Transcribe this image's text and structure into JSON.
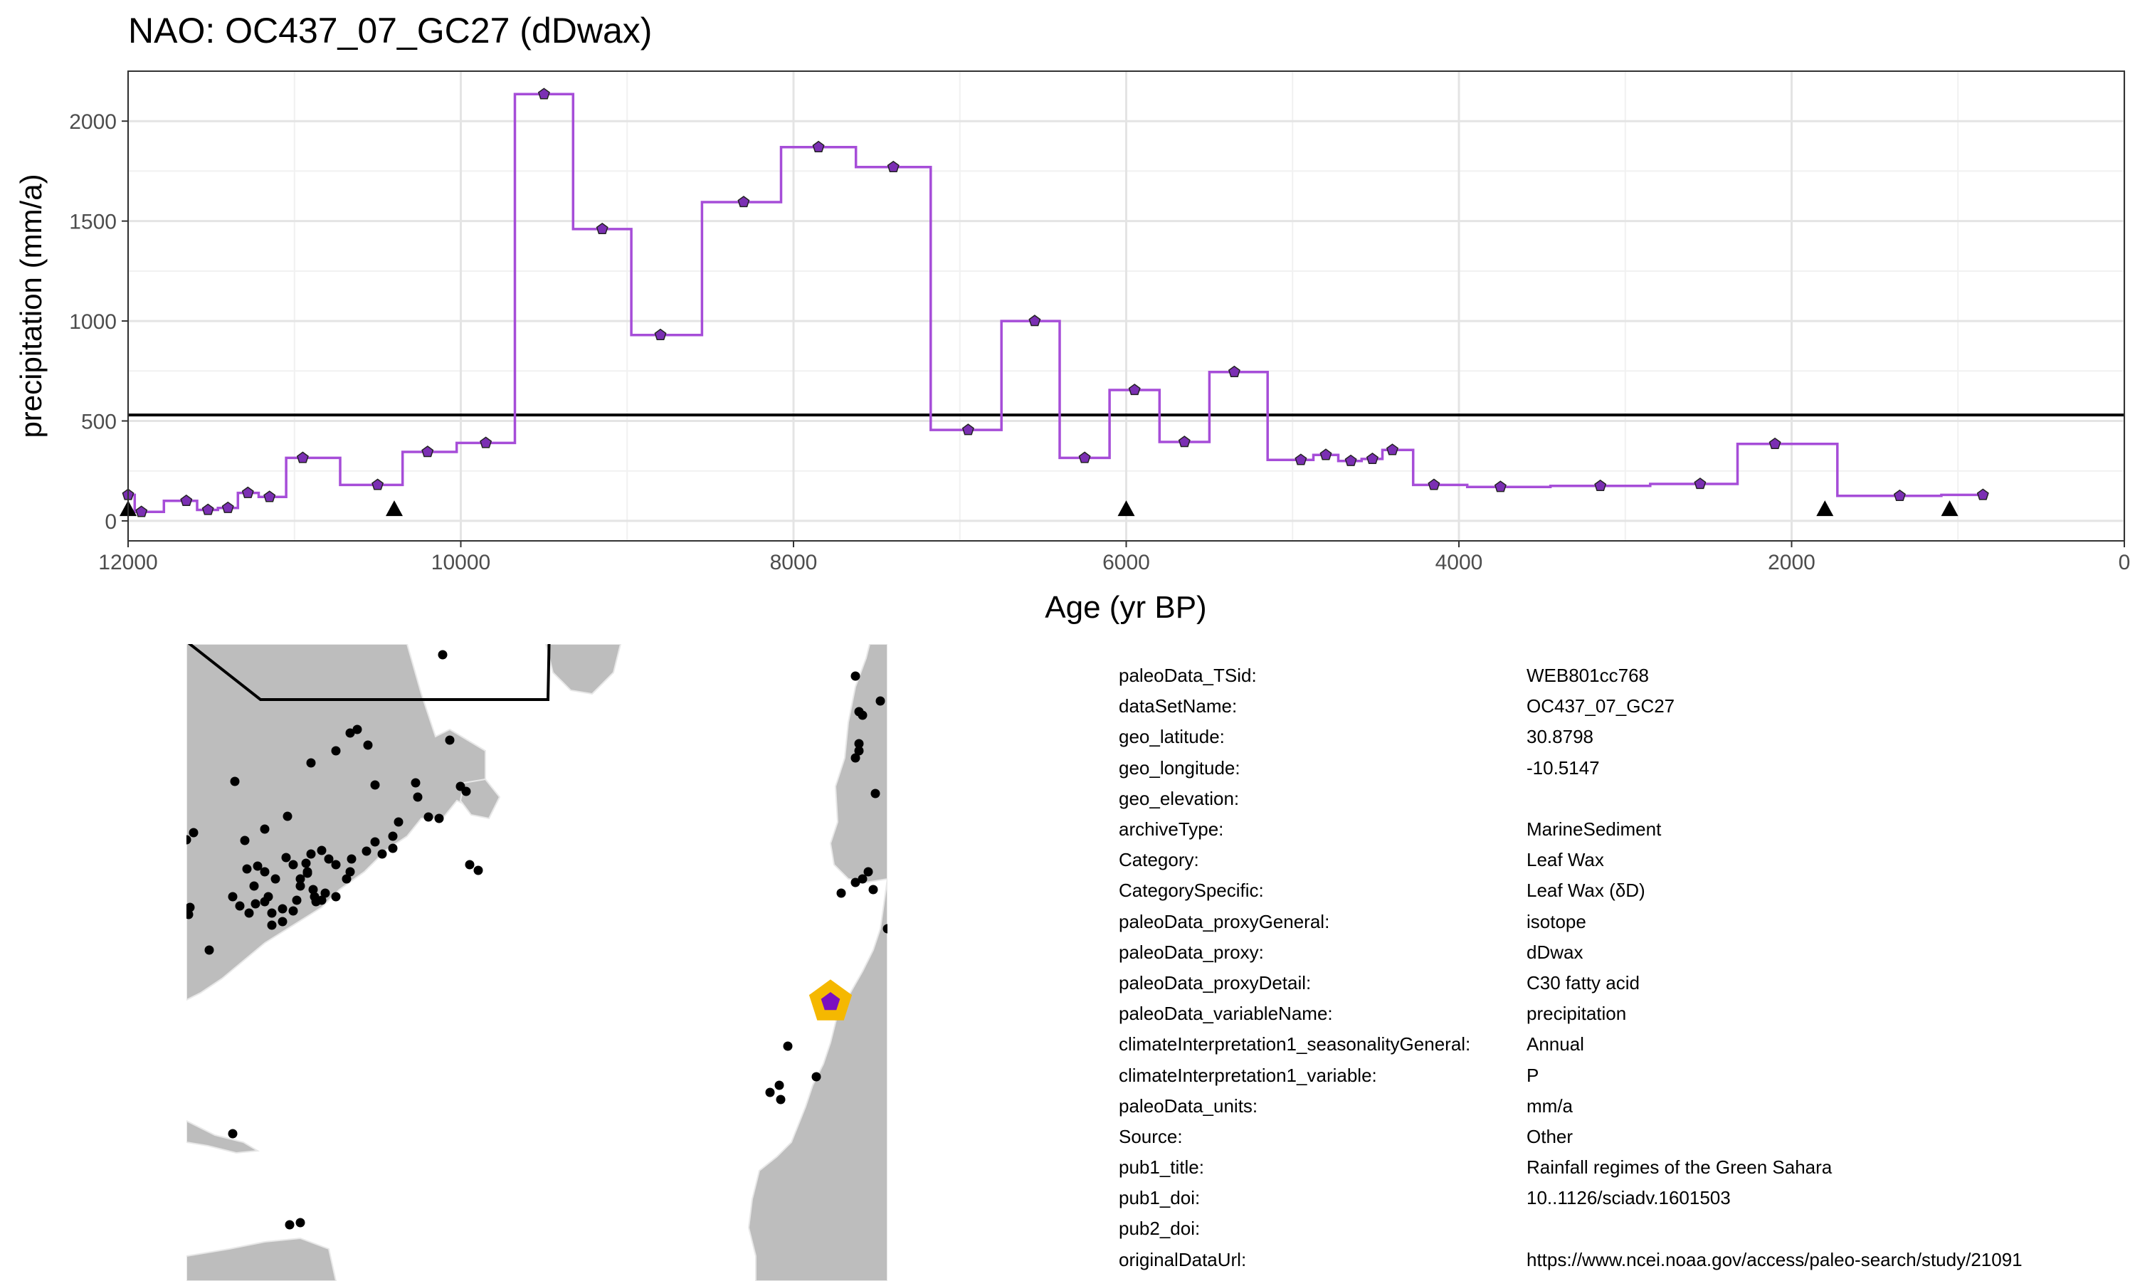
{
  "chart_data": {
    "type": "line",
    "title": "NAO: OC437_07_GC27 (dDwax)",
    "xlabel": "Age (yr BP)",
    "ylabel": "precipitation (mm/a)",
    "xlim": [
      12000,
      0
    ],
    "ylim": [
      -100,
      2250
    ],
    "x_reversed": true,
    "x_ticks": [
      12000,
      10000,
      8000,
      6000,
      4000,
      2000,
      0
    ],
    "y_ticks": [
      0,
      500,
      1000,
      1500,
      2000
    ],
    "grid": true,
    "reference_line": 530,
    "series": [
      {
        "style": "step",
        "color": "#a64dd8",
        "x": [
          12000,
          11920,
          11650,
          11520,
          11400,
          11280,
          11150,
          10950,
          10500,
          10200,
          9850,
          9500,
          9150,
          8800,
          8300,
          7850,
          7400,
          6950,
          6550,
          6250,
          5950,
          5650,
          5350,
          4950,
          4800,
          4650,
          4520,
          4400,
          4150,
          3750,
          3150,
          2550,
          2100,
          1350,
          850
        ],
        "values": [
          130,
          45,
          100,
          55,
          65,
          140,
          120,
          315,
          180,
          345,
          390,
          2135,
          1460,
          930,
          1595,
          1870,
          1770,
          455,
          1000,
          315,
          655,
          395,
          745,
          305,
          330,
          300,
          310,
          355,
          180,
          170,
          175,
          185,
          385,
          125,
          130
        ]
      }
    ],
    "markers": [
      12000,
      10400,
      6000,
      1800,
      1050
    ],
    "marker_y": 60
  },
  "colors": {
    "series": "#a64dd8",
    "point_fill": "#7b2fb3",
    "land": "#bdbdbd",
    "highlight": "#f5b800",
    "highlight_point": "#7b0fc0"
  },
  "metadata": [
    {
      "key": "paleoData_TSid:",
      "value": "WEB801cc768"
    },
    {
      "key": "dataSetName:",
      "value": "OC437_07_GC27"
    },
    {
      "key": "geo_latitude:",
      "value": "30.8798"
    },
    {
      "key": "geo_longitude:",
      "value": "-10.5147"
    },
    {
      "key": "geo_elevation:",
      "value": ""
    },
    {
      "key": "archiveType:",
      "value": "MarineSediment"
    },
    {
      "key": "Category:",
      "value": "Leaf Wax"
    },
    {
      "key": "CategorySpecific:",
      "value": "Leaf Wax (δD)"
    },
    {
      "key": "paleoData_proxyGeneral:",
      "value": "isotope"
    },
    {
      "key": "paleoData_proxy:",
      "value": "dDwax"
    },
    {
      "key": "paleoData_proxyDetail:",
      "value": "C30 fatty acid"
    },
    {
      "key": "paleoData_variableName:",
      "value": "precipitation"
    },
    {
      "key": "climateInterpretation1_seasonalityGeneral:",
      "value": "Annual"
    },
    {
      "key": "climateInterpretation1_variable:",
      "value": "P"
    },
    {
      "key": "paleoData_units:",
      "value": "mm/a"
    },
    {
      "key": "Source:",
      "value": "Other"
    },
    {
      "key": "pub1_title:",
      "value": "Rainfall regimes of the Green Sahara"
    },
    {
      "key": "pub1_doi:",
      "value": "10..1126/sciadv.1601503"
    },
    {
      "key": "pub2_doi:",
      "value": ""
    },
    {
      "key": "originalDataUrl:",
      "value": "https://www.ncei.noaa.gov/access/paleo-search/study/21091"
    }
  ]
}
